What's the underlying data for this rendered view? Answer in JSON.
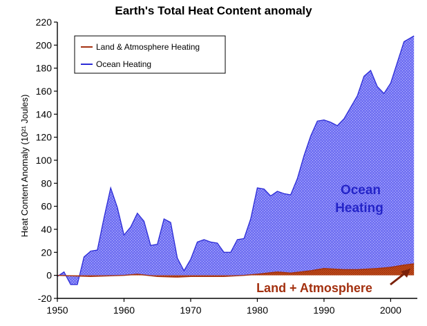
{
  "chart_data": {
    "type": "area",
    "title": "Earth's Total Heat Content anomaly",
    "xlabel": "",
    "ylabel": "Heat Content Anomaly (10²¹ Joules)",
    "xlim": [
      1950,
      2004
    ],
    "ylim": [
      -20,
      220
    ],
    "xticks": [
      1950,
      1960,
      1970,
      1980,
      1990,
      2000
    ],
    "yticks": [
      -20,
      0,
      20,
      40,
      60,
      80,
      100,
      120,
      140,
      160,
      180,
      200,
      220
    ],
    "grid": false,
    "legend_position": "top-left",
    "stacked": true,
    "series": [
      {
        "name": "Land & Atmosphere Heating",
        "color": "#a3300f",
        "x": [
          1950,
          1955,
          1960,
          1962,
          1965,
          1968,
          1970,
          1975,
          1978,
          1980,
          1983,
          1985,
          1988,
          1990,
          1993,
          1995,
          1998,
          2000,
          2002,
          2003.5
        ],
        "values": [
          0,
          -1,
          0,
          1,
          -1,
          -1.5,
          -1,
          -1,
          0,
          1,
          3,
          2,
          4,
          6,
          5,
          5,
          6,
          7,
          9,
          10
        ]
      },
      {
        "name": "Ocean Heating",
        "color": "#6f6ff0",
        "x": [
          1950,
          1951,
          1952,
          1953,
          1954,
          1955,
          1956,
          1957,
          1958,
          1959,
          1960,
          1961,
          1962,
          1963,
          1964,
          1965,
          1966,
          1967,
          1968,
          1969,
          1970,
          1971,
          1972,
          1973,
          1974,
          1975,
          1976,
          1977,
          1978,
          1979,
          1980,
          1981,
          1982,
          1983,
          1984,
          1985,
          1986,
          1987,
          1988,
          1989,
          1990,
          1991,
          1992,
          1993,
          1994,
          1995,
          1996,
          1997,
          1998,
          1999,
          2000,
          2001,
          2002,
          2003.5
        ],
        "totals": [
          -1,
          3,
          -8,
          -8,
          16,
          21,
          22,
          50,
          76,
          59,
          35,
          42,
          54,
          47,
          26,
          27,
          49,
          46,
          15,
          4,
          14,
          29,
          31,
          29,
          28,
          20,
          20,
          31,
          32,
          49,
          76,
          75,
          69,
          73,
          71,
          70,
          84,
          104,
          121,
          134,
          135,
          133,
          130,
          136,
          146,
          156,
          173,
          178,
          164,
          158,
          167,
          185,
          203,
          208
        ]
      }
    ],
    "annotations": [
      "Ocean",
      "Heating",
      "Land + Atmosphere"
    ]
  }
}
